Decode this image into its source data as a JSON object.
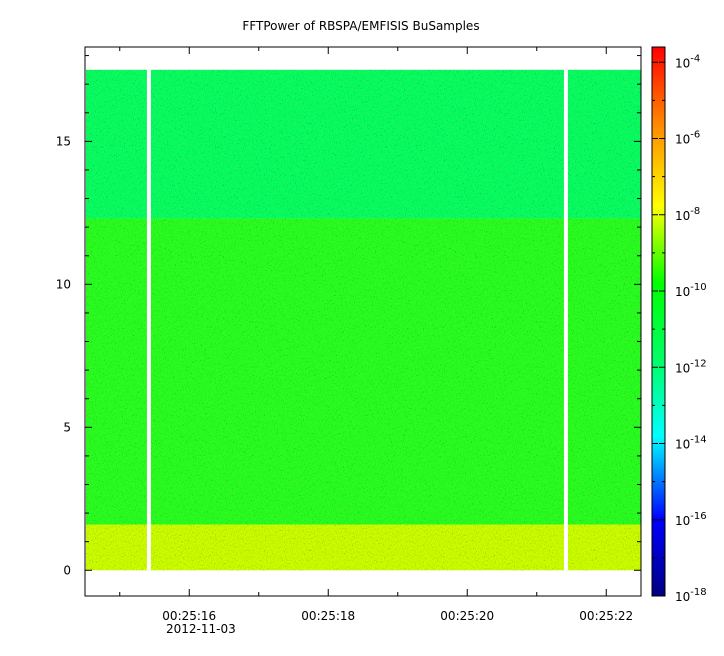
{
  "chart_data": {
    "type": "heatmap",
    "title": "FFTPower of RBSPA/EMFISIS  BuSamples",
    "xlabel": "",
    "ylabel": "",
    "x_tick_labels": [
      "00:25:16",
      "00:25:18",
      "00:25:20",
      "00:25:22"
    ],
    "x_tick_values_s": [
      16,
      18,
      20,
      22
    ],
    "x_date_label": "2012-11-03",
    "xlim_s": [
      14.5,
      22.5
    ],
    "y_ticks": [
      0,
      5,
      10,
      15
    ],
    "ylim": [
      -0.9,
      18.3
    ],
    "data_ymax": 17.5,
    "colorbar": {
      "scale": "log",
      "range_exponents": [
        -18,
        -3.6
      ],
      "tick_exponents": [
        -18,
        -16,
        -14,
        -12,
        -10,
        -8,
        -6,
        -4
      ],
      "tick_labels": [
        "10-18",
        "10-16",
        "10-14",
        "10-12",
        "10-10",
        "10-8",
        "10-6",
        "10-4"
      ],
      "colors": [
        "#000080",
        "#0000ff",
        "#00ffff",
        "#00ff00",
        "#ffff00",
        "#ff0000"
      ]
    },
    "bands": [
      {
        "y_range": [
          12.3,
          17.5
        ],
        "level_exponent": -12.6,
        "color": "#00ff66"
      },
      {
        "y_range": [
          1.6,
          12.3
        ],
        "level_exponent": -10.0,
        "color": "#22ff22"
      },
      {
        "y_range": [
          0,
          1.6
        ],
        "level_exponent": -8.3,
        "color": "#ccff00"
      }
    ],
    "data_gaps_s": [
      15.42,
      21.42
    ],
    "grid": false
  }
}
